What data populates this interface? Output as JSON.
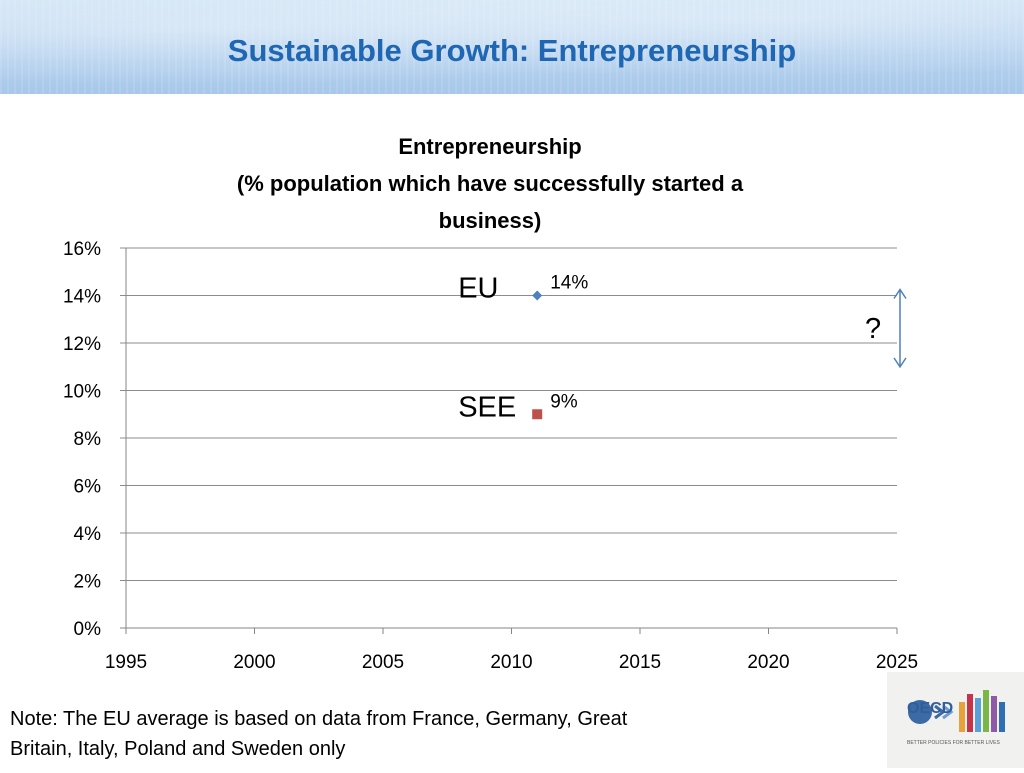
{
  "slide": {
    "title": "Sustainable Growth: Entrepreneurship",
    "note_line1": "Note: The EU average is based on data from France, Germany, Great",
    "note_line2": "Britain, Italy, Poland and Sweden only"
  },
  "logo": {
    "text": "OECD",
    "tagline": "BETTER POLICIES FOR BETTER LIVES"
  },
  "chart_data": {
    "type": "scatter",
    "title_lines": [
      "Entrepreneurship",
      "(% population  which have successfully started a",
      "business)"
    ],
    "xlim": [
      1995,
      2025
    ],
    "ylim": [
      0,
      16
    ],
    "x_ticks": [
      1995,
      2000,
      2005,
      2010,
      2015,
      2020,
      2025
    ],
    "y_ticks": [
      0,
      2,
      4,
      6,
      8,
      10,
      12,
      14,
      16
    ],
    "y_tick_labels": [
      "0%",
      "2%",
      "4%",
      "6%",
      "8%",
      "10%",
      "12%",
      "14%",
      "16%"
    ],
    "grid": true,
    "series": [
      {
        "name": "EU",
        "x": [
          2011
        ],
        "y": [
          14
        ],
        "data_labels": [
          "14%"
        ],
        "marker": "diamond",
        "color": "#4f81bd"
      },
      {
        "name": "SEE",
        "x": [
          2011
        ],
        "y": [
          9
        ],
        "data_labels": [
          "9%"
        ],
        "marker": "square",
        "color": "#c0504d"
      }
    ],
    "annotations": [
      {
        "text": "?",
        "between": [
          14,
          11.5
        ],
        "at_x": 2025
      }
    ]
  }
}
